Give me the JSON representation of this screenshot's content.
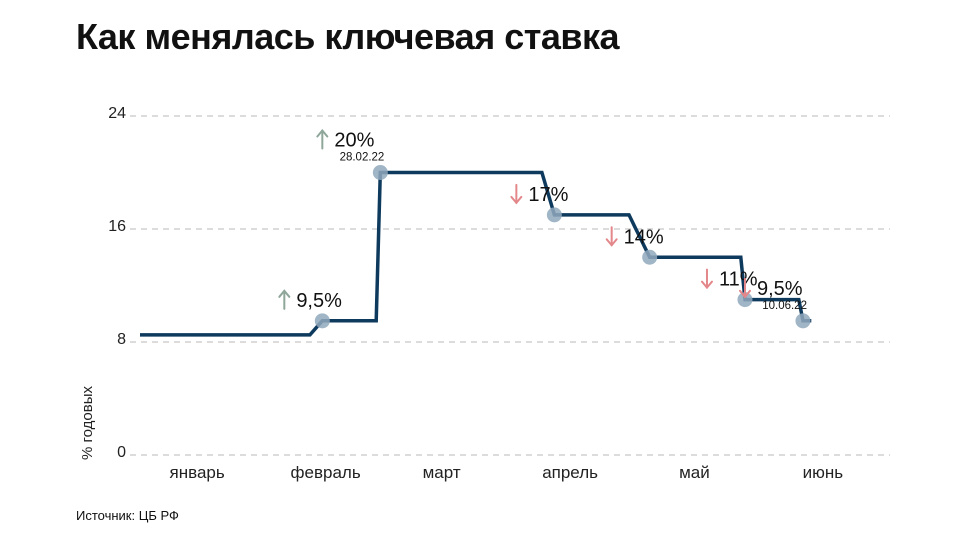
{
  "title": "Как менялась ключевая ставка",
  "source": "Источник: ЦБ РФ",
  "chart_data": {
    "type": "line",
    "title": "Как менялась ключевая ставка",
    "ylabel": "% годовых",
    "xlabel": "",
    "ylim": [
      0,
      24
    ],
    "yticks": [
      "0",
      "8",
      "16",
      "24"
    ],
    "grid": true,
    "categories": [
      "январь",
      "февраль",
      "март",
      "апрель",
      "май",
      "июнь"
    ],
    "series": [
      {
        "values": [
          {
            "x": "2022-01-01",
            "y": 8.5
          },
          {
            "x": "2022-02-11",
            "y": 8.5
          },
          {
            "x": "2022-02-14",
            "y": 9.5
          },
          {
            "x": "2022-02-27",
            "y": 9.5
          },
          {
            "x": "2022-02-28",
            "y": 20
          },
          {
            "x": "2022-04-08",
            "y": 20
          },
          {
            "x": "2022-04-11",
            "y": 17
          },
          {
            "x": "2022-04-29",
            "y": 17
          },
          {
            "x": "2022-05-04",
            "y": 14
          },
          {
            "x": "2022-05-26",
            "y": 14
          },
          {
            "x": "2022-05-27",
            "y": 11
          },
          {
            "x": "2022-06-09",
            "y": 11
          },
          {
            "x": "2022-06-10",
            "y": 9.5
          },
          {
            "x": "2022-06-12",
            "y": 9.5
          }
        ]
      }
    ],
    "annotations": [
      {
        "x": "2022-02-14",
        "y": 9.5,
        "text": "9,5%",
        "direction": "up",
        "date": ""
      },
      {
        "x": "2022-02-28",
        "y": 20,
        "text": "20%",
        "direction": "up",
        "date": "28.02.22"
      },
      {
        "x": "2022-04-11",
        "y": 17,
        "text": "17%",
        "direction": "down",
        "date": ""
      },
      {
        "x": "2022-05-04",
        "y": 14,
        "text": "14%",
        "direction": "down",
        "date": ""
      },
      {
        "x": "2022-05-27",
        "y": 11,
        "text": "11%",
        "direction": "down",
        "date": ""
      },
      {
        "x": "2022-06-10",
        "y": 9.5,
        "text": "9,5%",
        "direction": "down",
        "date": "10.06.22"
      }
    ],
    "colors": {
      "line": "#0e3a5e",
      "marker": "#8fa8bc",
      "up": "#8fa79a",
      "down": "#e3878a",
      "grid": "#b8b8b8"
    }
  }
}
